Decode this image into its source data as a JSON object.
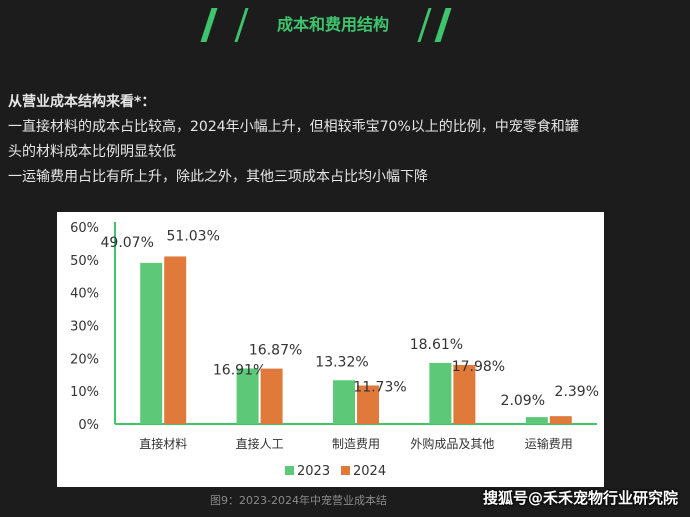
{
  "header": {
    "title": "成本和费用结构"
  },
  "intro": {
    "heading": "从营业成本结构来看*：",
    "lines": [
      "一直接材料的成本占比较高，2024年小幅上升，但相较乖宝70%以上的比例，中宠零食和罐",
      "头的材料成本比例明显较低",
      "一运输费用占比有所上升，除此之外，其他三项成本占比均小幅下降"
    ]
  },
  "caption": "图9：2023-2024年中宠营业成本结",
  "source": "搜狐号@禾禾宠物行业研究院",
  "colors": {
    "accent": "#3ec46d",
    "s2023": "#5cc878",
    "s2024": "#e07a3a"
  },
  "chart_data": {
    "type": "bar",
    "categories": [
      "直接材料",
      "直接人工",
      "制造费用",
      "外购成品及其他",
      "运输费用"
    ],
    "series": [
      {
        "name": "2023",
        "values": [
          49.07,
          16.91,
          13.32,
          18.61,
          2.09
        ],
        "labels": [
          "49.07%",
          "16.91%",
          "13.32%",
          "18.61%",
          "2.09%"
        ]
      },
      {
        "name": "2024",
        "values": [
          51.03,
          16.87,
          11.73,
          17.98,
          2.39
        ],
        "labels": [
          "51.03%",
          "16.87%",
          "11.73%",
          "17.98%",
          "2.39%"
        ]
      }
    ],
    "yticks": [
      "0%",
      "10%",
      "20%",
      "30%",
      "40%",
      "50%",
      "60%"
    ],
    "ylim": [
      0,
      60
    ],
    "legend": "bottom"
  }
}
